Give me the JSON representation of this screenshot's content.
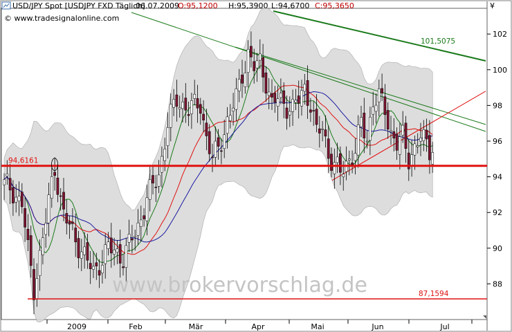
{
  "header": {
    "instrument": "USD/JPY Spot [USDJPY FXD  Täglich]",
    "date": "06.07.2009",
    "open": "O:95,1200",
    "high": "H:95,3900",
    "low": "L:94,6700",
    "close": "C:95,3650",
    "source": "© www.tradesignalonline.com",
    "currency_symbol": "¥"
  },
  "watermark": "www.brokervorschlag.de",
  "colors": {
    "up_candle": "#ffffff",
    "down_candle": "#7a1530",
    "band": "#d8d8d8",
    "red_line": "#e01010",
    "green_line": "#1a7a1a",
    "blue_line": "#1a1aa0"
  },
  "chart_data": {
    "type": "candlestick",
    "y_axis": {
      "min": 86,
      "max": 104,
      "ticks": [
        "88",
        "90",
        "92",
        "94",
        "96",
        "98",
        "100",
        "102"
      ]
    },
    "x_axis": {
      "labels": [
        "2009",
        "Feb",
        "Mär",
        "Apr",
        "Mai",
        "Jun",
        "Jul"
      ]
    },
    "levels": [
      {
        "label": "94,6161",
        "value": 94.6161
      },
      {
        "label": "87,1594",
        "value": 87.1594
      }
    ],
    "trendline_labels": [
      {
        "label": "101,5075",
        "value": 101.5075
      }
    ],
    "last_close": 95.365,
    "grid": false
  }
}
